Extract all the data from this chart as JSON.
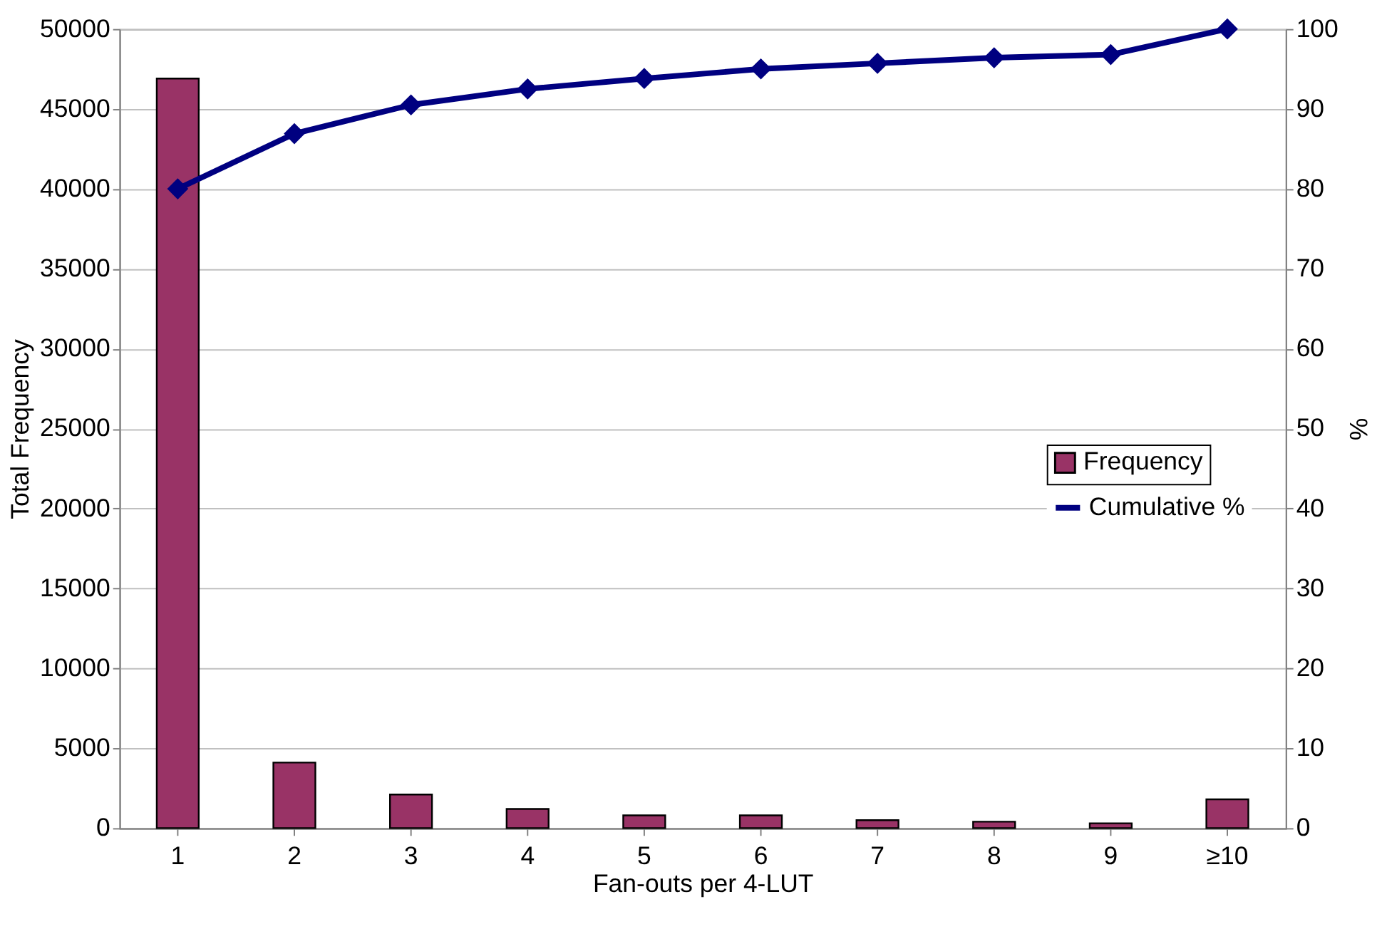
{
  "chart_data": {
    "type": "bar",
    "xlabel": "Fan-outs per 4-LUT",
    "ylabel": "Total Frequency",
    "y2label": "%",
    "categories": [
      "1",
      "2",
      "3",
      "4",
      "5",
      "6",
      "7",
      "8",
      "9",
      "≥10"
    ],
    "series": [
      {
        "name": "Frequency",
        "color": "#993366",
        "values": [
          46900,
          4100,
          2100,
          1200,
          800,
          800,
          500,
          400,
          300,
          1800
        ]
      },
      {
        "name": "Cumulative %",
        "type": "line",
        "axis": "y2",
        "color": "#000080",
        "marker": "diamond",
        "values": [
          80,
          86.9,
          90.5,
          92.5,
          93.8,
          95.0,
          95.7,
          96.4,
          96.8,
          100
        ]
      }
    ],
    "ylim": [
      0,
      50000
    ],
    "yticks": [
      0,
      5000,
      10000,
      15000,
      20000,
      25000,
      30000,
      35000,
      40000,
      45000,
      50000
    ],
    "y2lim": [
      0,
      100
    ],
    "y2ticks": [
      0,
      10,
      20,
      30,
      40,
      50,
      60,
      70,
      80,
      90,
      100
    ],
    "grid": "y",
    "legend": "right"
  }
}
